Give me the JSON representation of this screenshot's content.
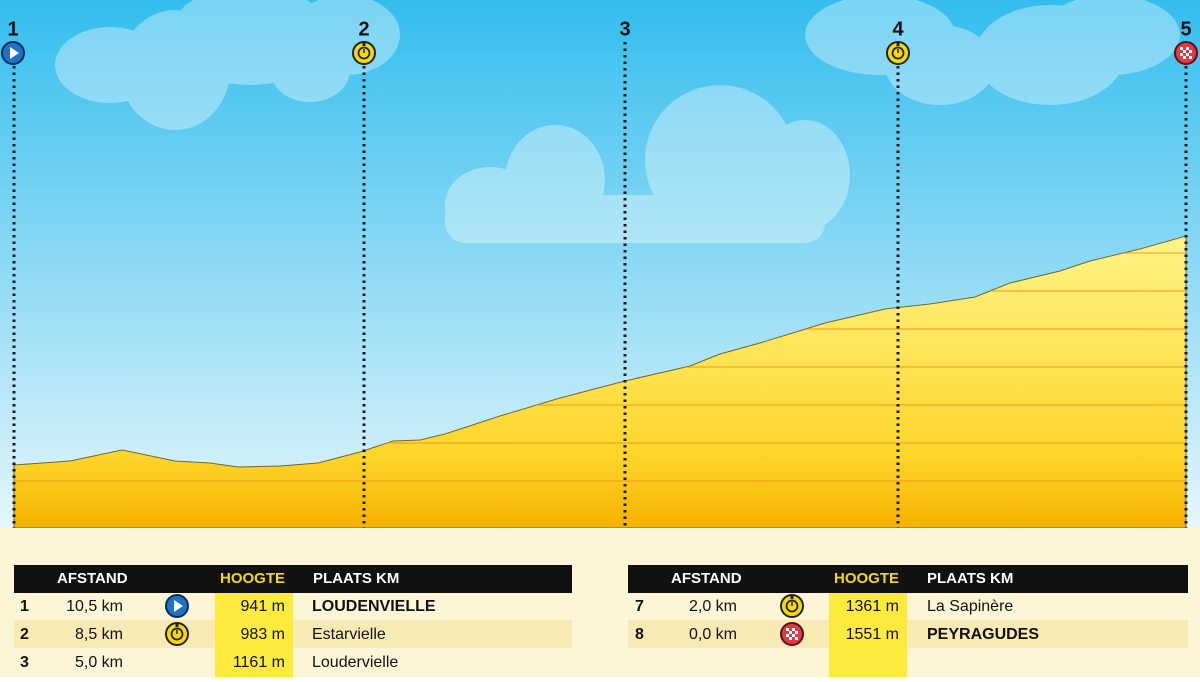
{
  "profile": {
    "markers": [
      "1",
      "2",
      "3",
      "4",
      "5"
    ]
  },
  "tables": [
    {
      "headers": [
        "AFSTAND",
        "HOOGTE",
        "PLAATS KM"
      ],
      "rows": [
        [
          "1",
          "10,5 km",
          "941 m",
          "LOUDENVIELLE"
        ],
        [
          "2",
          "8,5 km",
          "983 m",
          "Estarvielle"
        ],
        [
          "3",
          "5,0 km",
          "1161 m",
          "Loudervielle"
        ]
      ]
    },
    {
      "headers": [
        "AFSTAND",
        "HOOGTE",
        "PLAATS KM"
      ],
      "rows": [
        [
          "7",
          "2,0 km",
          "1361 m",
          "La Sapinère"
        ],
        [
          "8",
          "0,0 km",
          "1551 m",
          "PEYRAGUDES"
        ]
      ]
    }
  ]
}
